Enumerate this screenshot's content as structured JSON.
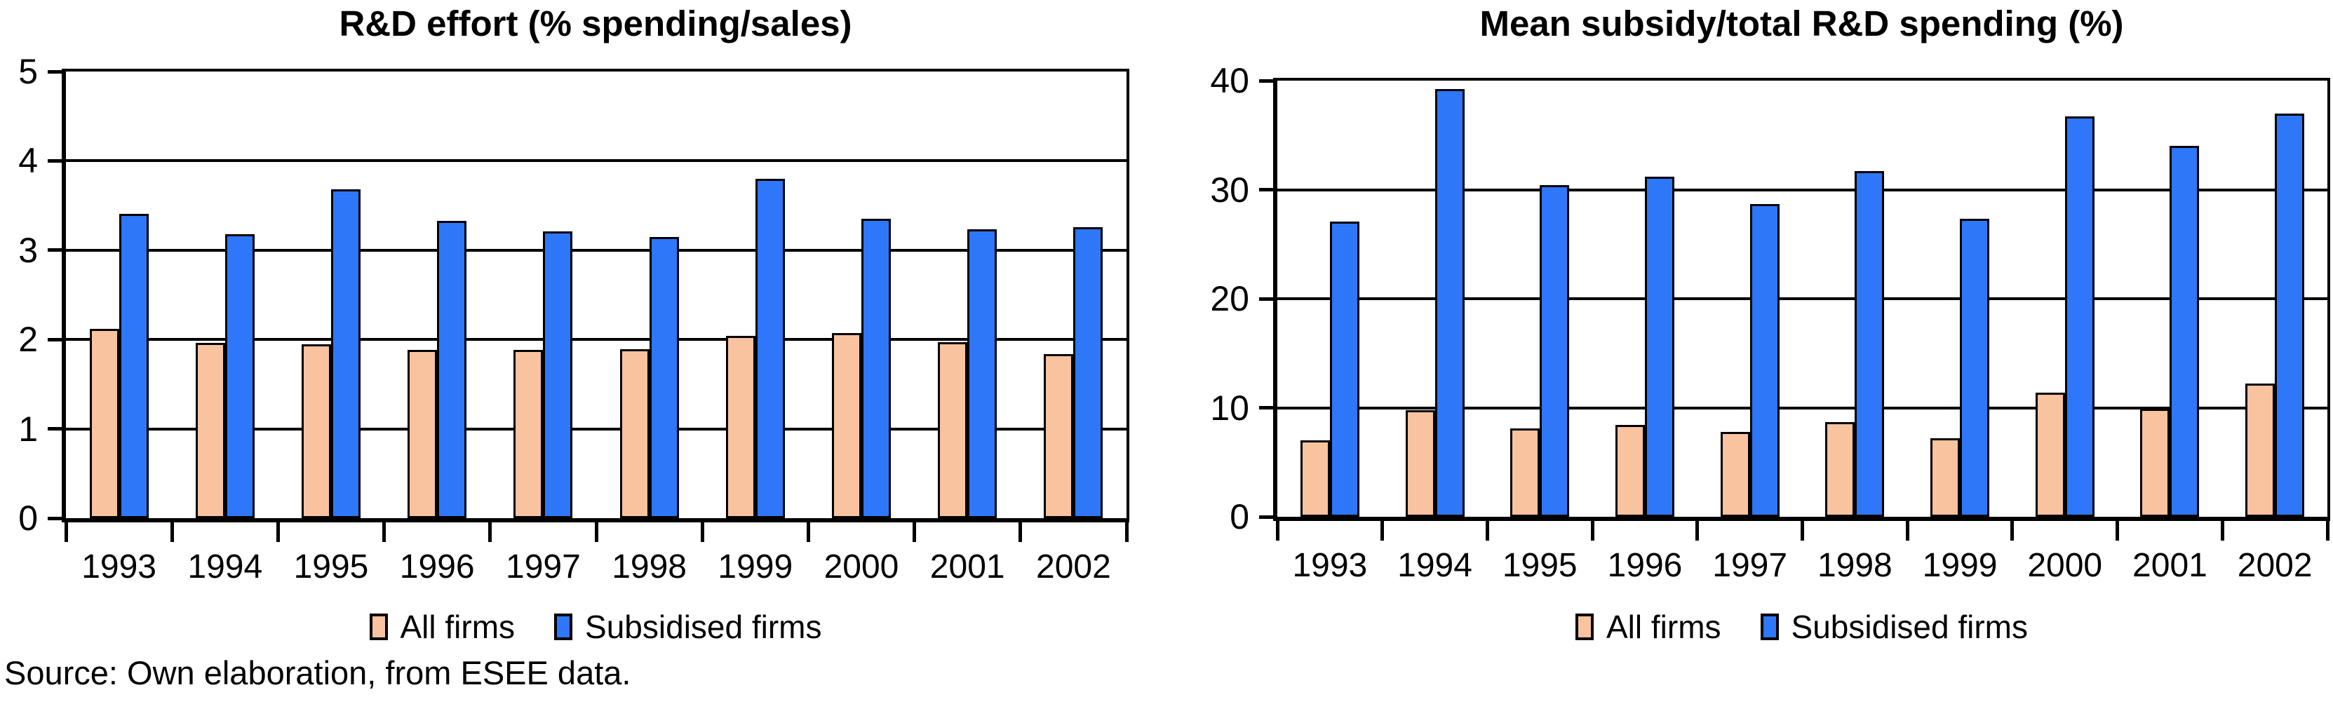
{
  "source_note": "Source: Own elaboration, from ESEE data.",
  "chart_data": [
    {
      "type": "bar",
      "title": "R&D effort (% spending/sales)",
      "categories": [
        "1993",
        "1994",
        "1995",
        "1996",
        "1997",
        "1998",
        "1999",
        "2000",
        "2001",
        "2002"
      ],
      "series": [
        {
          "name": "All firms",
          "color": "#FAC39F",
          "values": [
            2.12,
            1.96,
            1.95,
            1.88,
            1.88,
            1.89,
            2.04,
            2.07,
            1.97,
            1.84
          ]
        },
        {
          "name": "Subsidised firms",
          "color": "#2E77F8",
          "values": [
            3.41,
            3.18,
            3.68,
            3.33,
            3.21,
            3.15,
            3.8,
            3.35,
            3.23,
            3.26
          ]
        }
      ],
      "xlabel": "",
      "ylabel": "",
      "ylim": [
        0,
        5
      ],
      "yticks": [
        0,
        1,
        2,
        3,
        4,
        5
      ],
      "grid": true,
      "legend_position": "bottom"
    },
    {
      "type": "bar",
      "title": "Mean subsidy/total R&D spending (%)",
      "categories": [
        "1993",
        "1994",
        "1995",
        "1996",
        "1997",
        "1998",
        "1999",
        "2000",
        "2001",
        "2002"
      ],
      "series": [
        {
          "name": "All firms",
          "color": "#FAC39F",
          "values": [
            7.0,
            9.8,
            8.1,
            8.4,
            7.8,
            8.7,
            7.2,
            11.4,
            9.9,
            12.2
          ]
        },
        {
          "name": "Subsidised firms",
          "color": "#2E77F8",
          "values": [
            27.1,
            39.2,
            30.4,
            31.2,
            28.7,
            31.7,
            27.3,
            36.7,
            34.0,
            37.0
          ]
        }
      ],
      "xlabel": "",
      "ylabel": "",
      "ylim": [
        0,
        40
      ],
      "yticks": [
        0,
        10,
        20,
        30,
        40
      ],
      "grid": true,
      "legend_position": "bottom"
    }
  ]
}
